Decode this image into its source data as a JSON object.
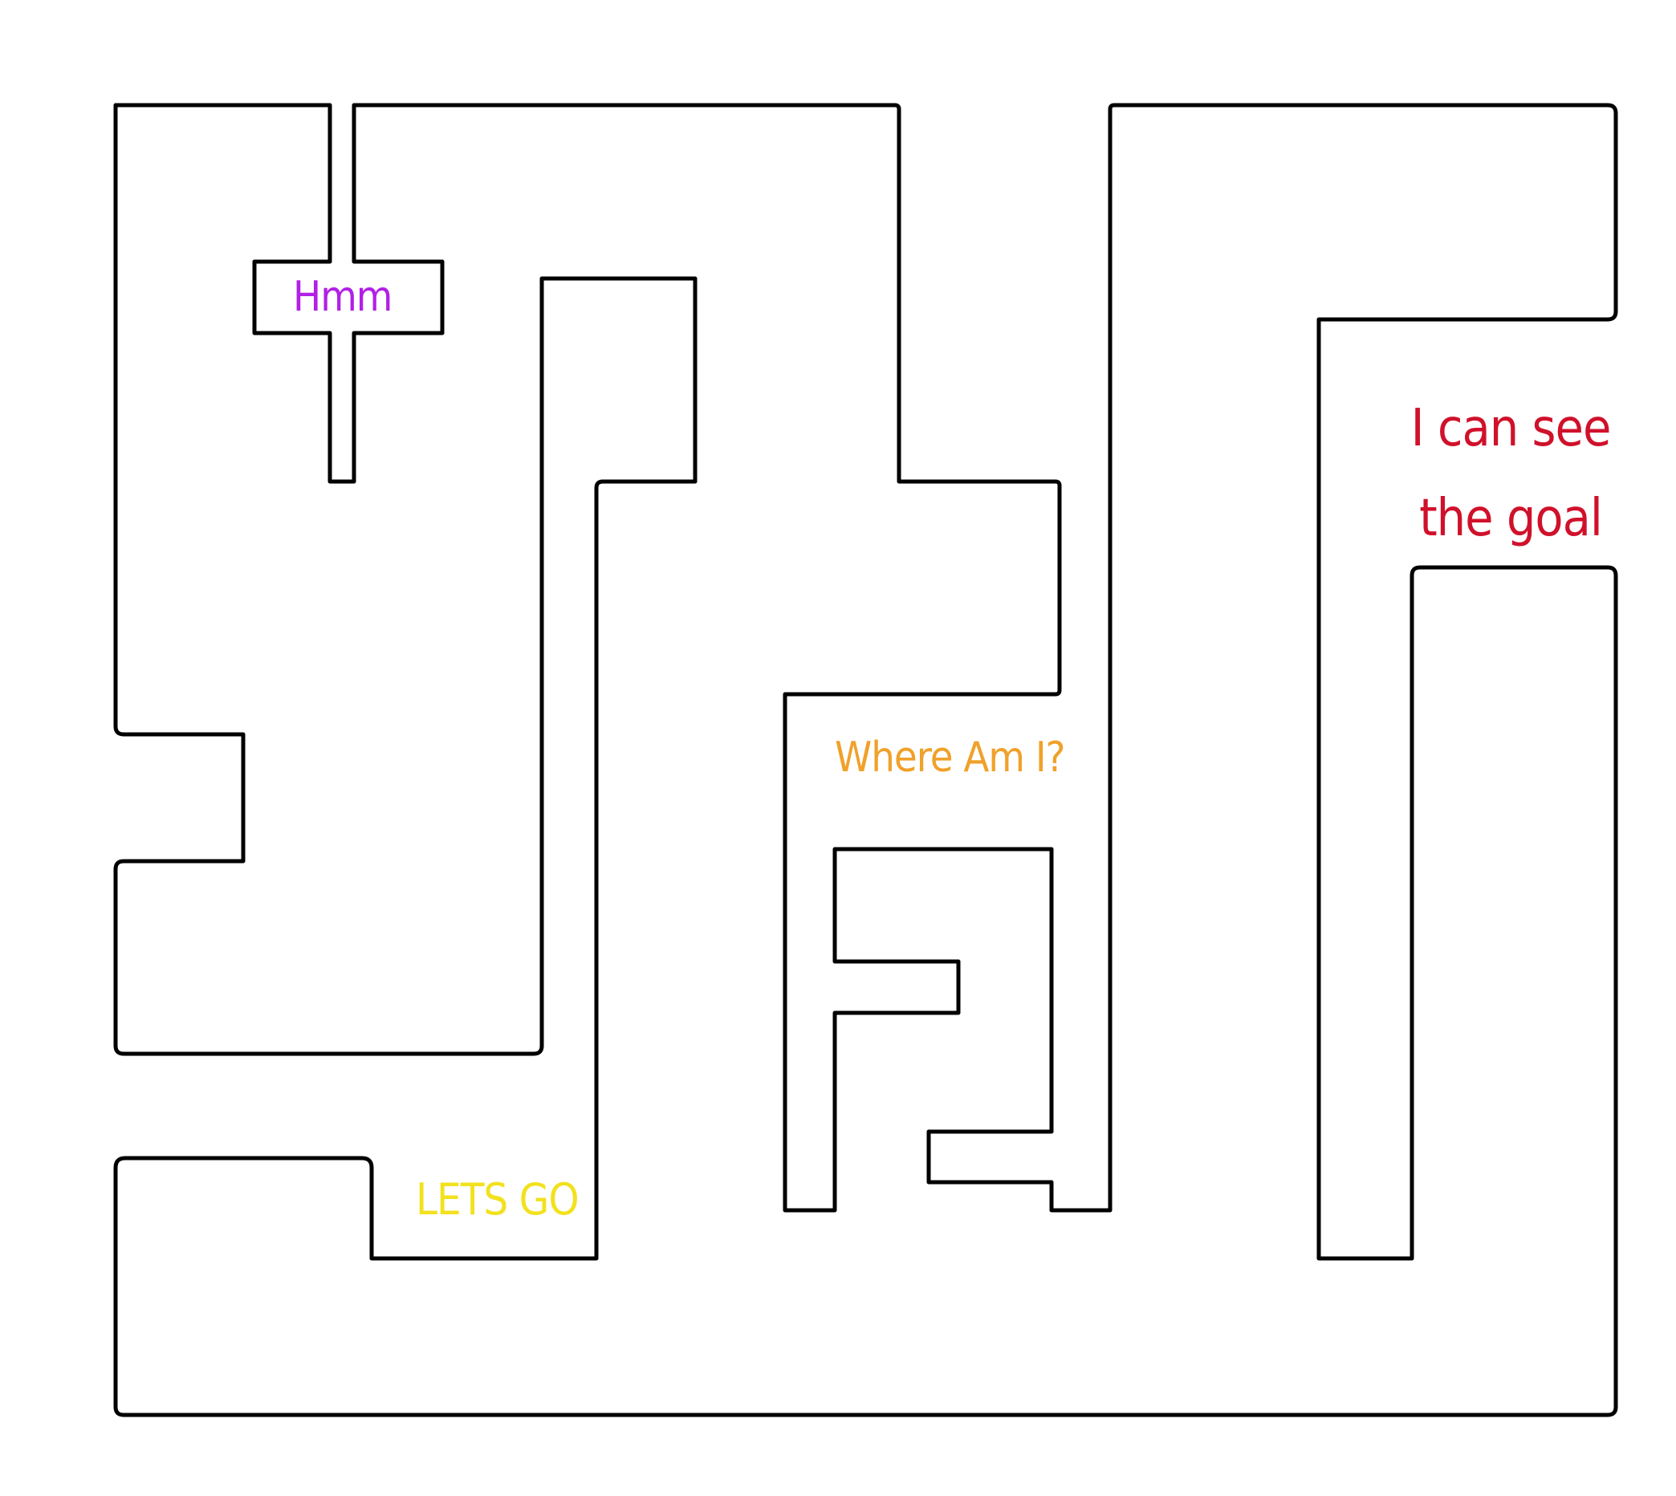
{
  "maze": {
    "wall_color": "#000000",
    "background_color": "#ffffff"
  },
  "labels": {
    "hmm": {
      "text": "Hmm",
      "color": "#b21fe6"
    },
    "where_am_i": {
      "text": "Where Am I?",
      "color": "#f0a12a"
    },
    "lets_go": {
      "text": "LETS GO",
      "color": "#f2e11d"
    },
    "goal": {
      "line1": "I can see",
      "line2": "the goal",
      "color": "#d0112b"
    }
  }
}
